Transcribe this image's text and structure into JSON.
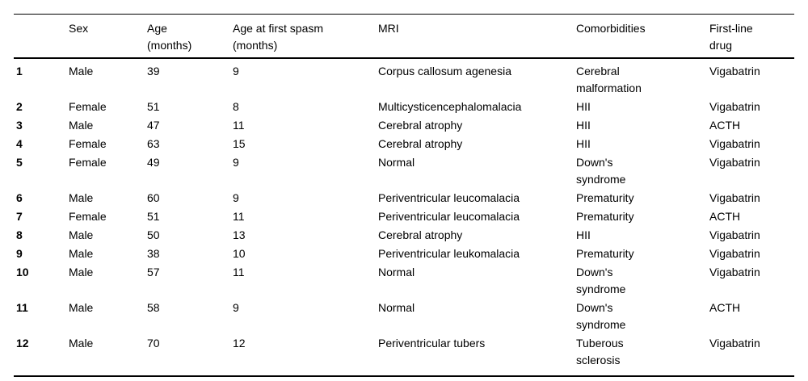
{
  "colors": {
    "background": "#ffffff",
    "text": "#000000",
    "rule": "#000000"
  },
  "table": {
    "columns": [
      {
        "key": "id",
        "label": ""
      },
      {
        "key": "sex",
        "label": "Sex"
      },
      {
        "key": "age",
        "label": "Age\n(months)"
      },
      {
        "key": "age_first_spasm",
        "label": "Age at first spasm\n(months)"
      },
      {
        "key": "mri",
        "label": "MRI"
      },
      {
        "key": "comorbidities",
        "label": "Comorbidities"
      },
      {
        "key": "first_line_drug",
        "label": "First-line\ndrug"
      }
    ],
    "rows": [
      {
        "id": "1",
        "sex": "Male",
        "age": "39",
        "age_first_spasm": "9",
        "mri": "Corpus callosum agenesia",
        "comorbidities": "Cerebral\nmalformation",
        "first_line_drug": "Vigabatrin"
      },
      {
        "id": "2",
        "sex": "Female",
        "age": "51",
        "age_first_spasm": "8",
        "mri": "Multicysticencephalomalacia",
        "comorbidities": "HII",
        "first_line_drug": "Vigabatrin"
      },
      {
        "id": "3",
        "sex": "Male",
        "age": "47",
        "age_first_spasm": "11",
        "mri": "Cerebral atrophy",
        "comorbidities": "HII",
        "first_line_drug": "ACTH"
      },
      {
        "id": "4",
        "sex": "Female",
        "age": "63",
        "age_first_spasm": "15",
        "mri": "Cerebral atrophy",
        "comorbidities": "HII",
        "first_line_drug": "Vigabatrin"
      },
      {
        "id": "5",
        "sex": "Female",
        "age": "49",
        "age_first_spasm": "9",
        "mri": "Normal",
        "comorbidities": "Down's\nsyndrome",
        "first_line_drug": "Vigabatrin"
      },
      {
        "id": "6",
        "sex": "Male",
        "age": "60",
        "age_first_spasm": "9",
        "mri": "Periventricular leucomalacia",
        "comorbidities": "Prematurity",
        "first_line_drug": "Vigabatrin"
      },
      {
        "id": "7",
        "sex": "Female",
        "age": "51",
        "age_first_spasm": "11",
        "mri": "Periventricular leucomalacia",
        "comorbidities": "Prematurity",
        "first_line_drug": "ACTH"
      },
      {
        "id": "8",
        "sex": "Male",
        "age": "50",
        "age_first_spasm": "13",
        "mri": "Cerebral atrophy",
        "comorbidities": "HII",
        "first_line_drug": "Vigabatrin"
      },
      {
        "id": "9",
        "sex": "Male",
        "age": "38",
        "age_first_spasm": "10",
        "mri": "Periventricular leukomalacia",
        "comorbidities": "Prematurity",
        "first_line_drug": "Vigabatrin"
      },
      {
        "id": "10",
        "sex": "Male",
        "age": "57",
        "age_first_spasm": "11",
        "mri": "Normal",
        "comorbidities": "Down's\nsyndrome",
        "first_line_drug": "Vigabatrin"
      },
      {
        "id": "11",
        "sex": "Male",
        "age": "58",
        "age_first_spasm": "9",
        "mri": "Normal",
        "comorbidities": "Down's\nsyndrome",
        "first_line_drug": "ACTH"
      },
      {
        "id": "12",
        "sex": "Male",
        "age": "70",
        "age_first_spasm": "12",
        "mri": "Periventricular tubers",
        "comorbidities": "Tuberous\nsclerosis",
        "first_line_drug": "Vigabatrin"
      }
    ]
  }
}
